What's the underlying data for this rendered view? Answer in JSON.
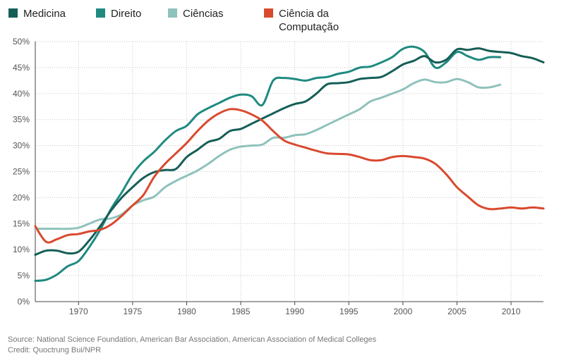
{
  "chart_data": {
    "type": "line",
    "title": "",
    "xlabel": "",
    "ylabel": "",
    "xlim": [
      1966,
      2013
    ],
    "ylim": [
      0,
      50
    ],
    "x_ticks": [
      1970,
      1975,
      1980,
      1985,
      1990,
      1995,
      2000,
      2005,
      2010
    ],
    "y_ticks": [
      "0%",
      "5%",
      "10%",
      "15%",
      "20%",
      "25%",
      "30%",
      "35%",
      "40%",
      "45%",
      "50%"
    ],
    "grid": "dotted vertical and horizontal",
    "legend_position": "top-left",
    "series": [
      {
        "name": "Medicina",
        "color": "#155e57",
        "x": [
          1966,
          1967,
          1968,
          1969,
          1970,
          1971,
          1972,
          1973,
          1974,
          1975,
          1976,
          1977,
          1978,
          1979,
          1980,
          1981,
          1982,
          1983,
          1984,
          1985,
          1986,
          1987,
          1988,
          1989,
          1990,
          1991,
          1992,
          1993,
          1994,
          1995,
          1996,
          1997,
          1998,
          1999,
          2000,
          2001,
          2002,
          2003,
          2004,
          2005,
          2006,
          2007,
          2008,
          2009,
          2010,
          2011,
          2012,
          2013
        ],
        "values": [
          9.0,
          9.8,
          9.8,
          9.3,
          9.6,
          11.8,
          14.5,
          17.5,
          20.0,
          22.0,
          23.8,
          24.9,
          25.3,
          25.5,
          27.8,
          29.2,
          30.7,
          31.3,
          32.8,
          33.2,
          34.2,
          35.2,
          36.2,
          37.2,
          38.0,
          38.5,
          40.0,
          41.8,
          42.0,
          42.2,
          42.8,
          43.0,
          43.2,
          44.3,
          45.6,
          46.3,
          47.2,
          46.0,
          46.5,
          48.5,
          48.4,
          48.7,
          48.2,
          48.0,
          47.8,
          47.2,
          46.8,
          46.0
        ]
      },
      {
        "name": "Direito",
        "color": "#1f8a80",
        "x": [
          1966,
          1967,
          1968,
          1969,
          1970,
          1971,
          1972,
          1973,
          1974,
          1975,
          1976,
          1977,
          1978,
          1979,
          1980,
          1981,
          1982,
          1983,
          1984,
          1985,
          1986,
          1987,
          1988,
          1989,
          1990,
          1991,
          1992,
          1993,
          1994,
          1995,
          1996,
          1997,
          1998,
          1999,
          2000,
          2001,
          2002,
          2003,
          2004,
          2005,
          2006,
          2007,
          2008,
          2009
        ],
        "values": [
          4.0,
          4.2,
          5.2,
          6.8,
          7.8,
          10.5,
          13.8,
          17.8,
          21.0,
          24.5,
          27.0,
          28.8,
          31.0,
          32.8,
          33.8,
          36.0,
          37.2,
          38.2,
          39.2,
          39.8,
          39.5,
          37.8,
          42.5,
          43.0,
          42.8,
          42.5,
          43.0,
          43.2,
          43.8,
          44.2,
          45.0,
          45.2,
          46.0,
          47.0,
          48.6,
          49.0,
          48.0,
          45.0,
          46.0,
          48.0,
          47.2,
          46.5,
          47.0,
          47.0
        ]
      },
      {
        "name": "Ciências",
        "color": "#8fc2bc",
        "x": [
          1966,
          1967,
          1968,
          1969,
          1970,
          1971,
          1972,
          1973,
          1974,
          1975,
          1976,
          1977,
          1978,
          1979,
          1980,
          1981,
          1982,
          1983,
          1984,
          1985,
          1986,
          1987,
          1988,
          1989,
          1990,
          1991,
          1992,
          1993,
          1994,
          1995,
          1996,
          1997,
          1998,
          1999,
          2000,
          2001,
          2002,
          2003,
          2004,
          2005,
          2006,
          2007,
          2008,
          2009
        ],
        "values": [
          14.0,
          14.0,
          14.0,
          14.0,
          14.2,
          15.0,
          15.8,
          16.0,
          16.8,
          18.5,
          19.5,
          20.2,
          22.0,
          23.2,
          24.2,
          25.2,
          26.5,
          28.0,
          29.2,
          29.8,
          30.0,
          30.2,
          31.5,
          31.5,
          32.0,
          32.2,
          33.0,
          34.0,
          35.0,
          36.0,
          37.0,
          38.5,
          39.2,
          40.0,
          40.8,
          42.0,
          42.7,
          42.2,
          42.2,
          42.8,
          42.2,
          41.2,
          41.2,
          41.7
        ]
      },
      {
        "name": "Ciência da\nComputação",
        "color": "#d9492e",
        "x": [
          1966,
          1967,
          1968,
          1969,
          1970,
          1971,
          1972,
          1973,
          1974,
          1975,
          1976,
          1977,
          1978,
          1979,
          1980,
          1981,
          1982,
          1983,
          1984,
          1985,
          1986,
          1987,
          1988,
          1989,
          1990,
          1991,
          1992,
          1993,
          1994,
          1995,
          1996,
          1997,
          1998,
          1999,
          2000,
          2001,
          2002,
          2003,
          2004,
          2005,
          2006,
          2007,
          2008,
          2009,
          2010,
          2011,
          2012,
          2013
        ],
        "values": [
          14.5,
          11.5,
          12.0,
          12.8,
          13.0,
          13.5,
          13.8,
          14.8,
          16.5,
          18.5,
          20.5,
          24.0,
          26.5,
          28.5,
          30.5,
          32.8,
          34.8,
          36.2,
          37.0,
          36.8,
          36.0,
          34.8,
          32.8,
          31.0,
          30.2,
          29.6,
          29.0,
          28.5,
          28.4,
          28.3,
          27.8,
          27.2,
          27.2,
          27.8,
          28.0,
          27.8,
          27.5,
          26.5,
          24.5,
          22.0,
          20.2,
          18.5,
          17.8,
          17.9,
          18.1,
          17.9,
          18.1,
          17.9
        ]
      }
    ]
  },
  "footer": {
    "source": "Source: National Science Foundation, American Bar Association, American Association of Medical Colleges",
    "credit": "Credit: Quoctrung Bui/NPR"
  }
}
